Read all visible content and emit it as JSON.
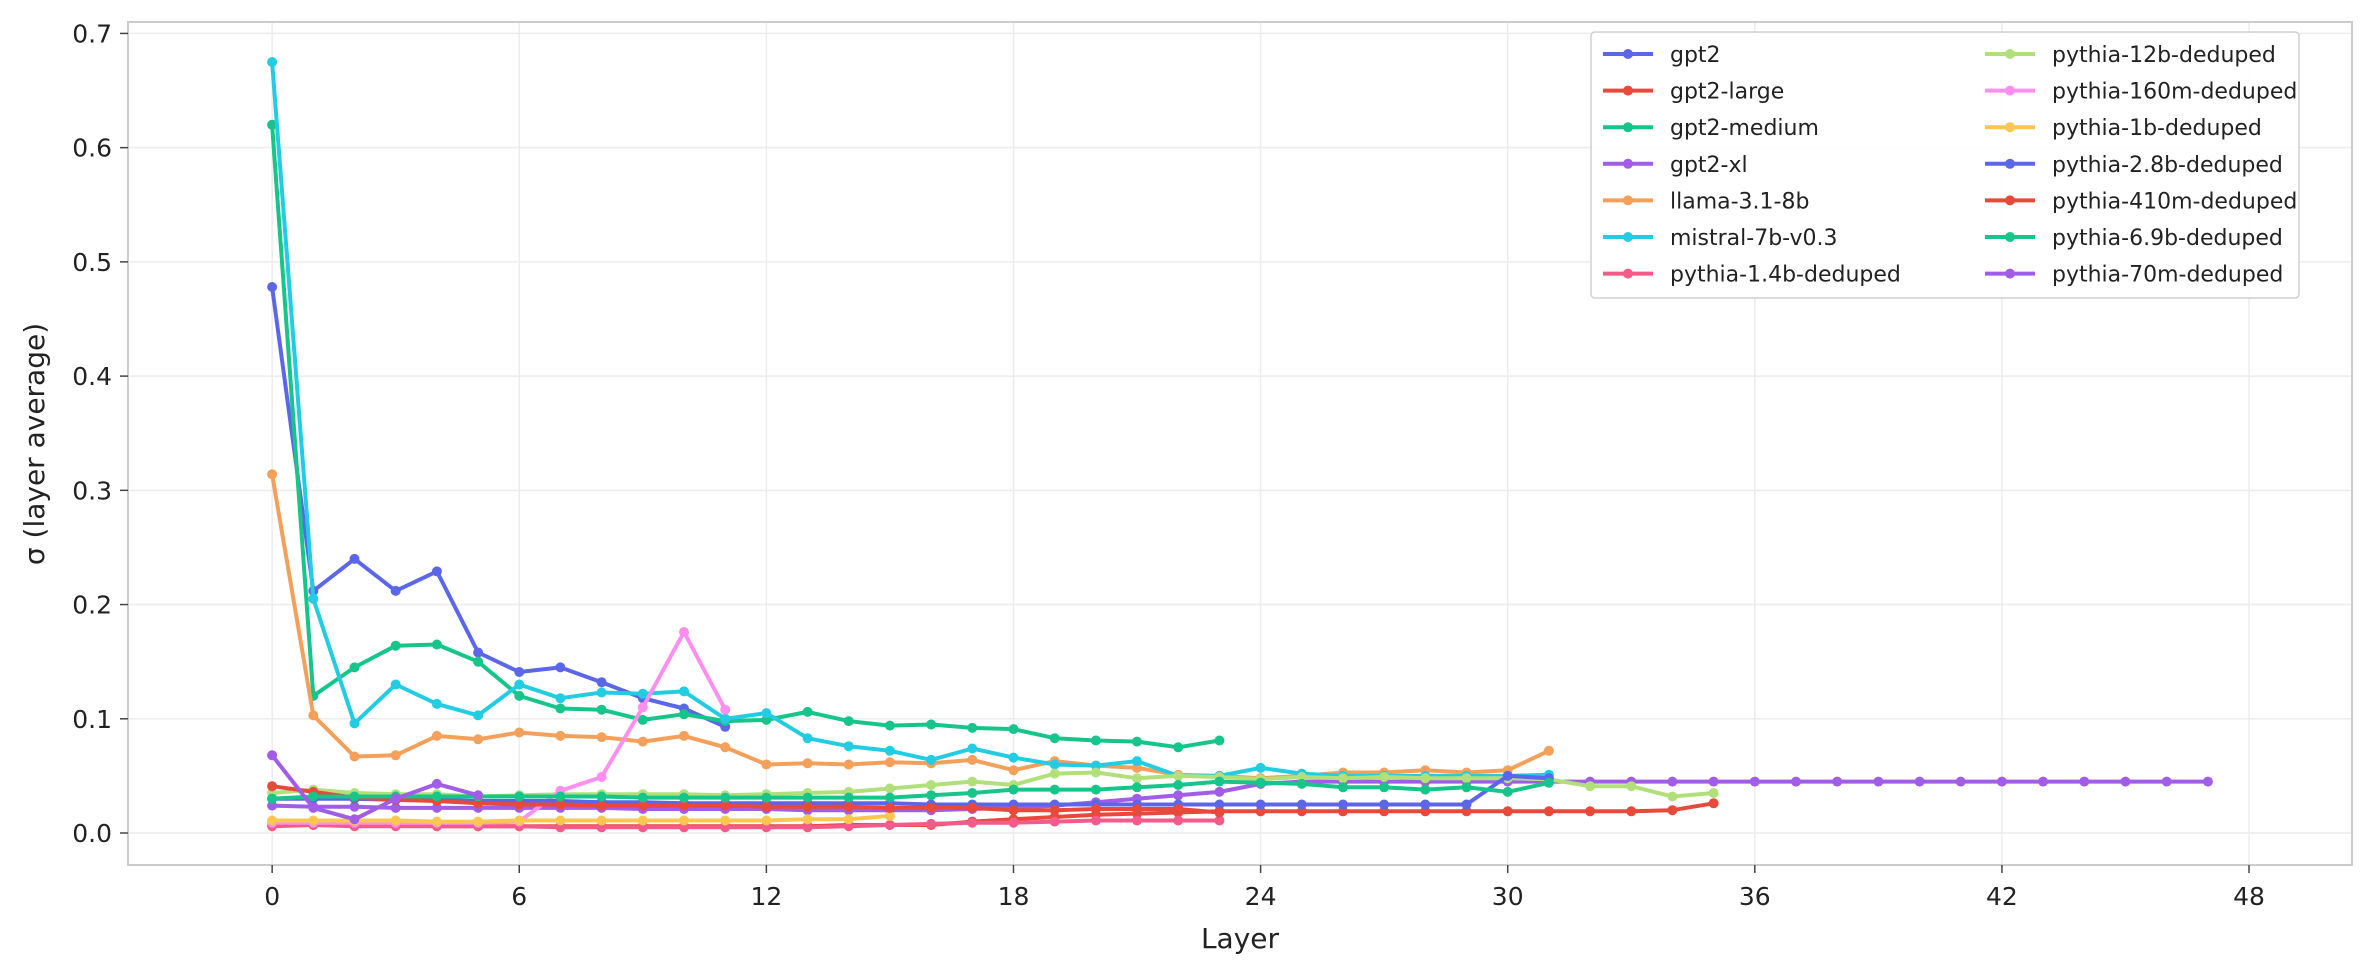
{
  "chart_data": {
    "type": "line",
    "xlabel": "Layer",
    "ylabel": "σ (layer average)",
    "xlim": [
      -3.5,
      50.5
    ],
    "ylim": [
      -0.028,
      0.71
    ],
    "xticks": [
      0,
      6,
      12,
      18,
      24,
      30,
      36,
      42,
      48
    ],
    "yticks": [
      0.0,
      0.1,
      0.2,
      0.3,
      0.4,
      0.5,
      0.6,
      0.7
    ],
    "xtick_labels": [
      "0",
      "6",
      "12",
      "18",
      "24",
      "30",
      "36",
      "42",
      "48"
    ],
    "ytick_labels": [
      "0.0",
      "0.1",
      "0.2",
      "0.3",
      "0.4",
      "0.5",
      "0.6",
      "0.7"
    ],
    "grid": true,
    "legend_position": "top-right",
    "legend_columns": 2,
    "series": [
      {
        "name": "gpt2",
        "color": "#5b67e8",
        "values": [
          0.478,
          0.212,
          0.24,
          0.212,
          0.229,
          0.158,
          0.141,
          0.145,
          0.132,
          0.118,
          0.109,
          0.093
        ]
      },
      {
        "name": "gpt2-large",
        "color": "#e8493a",
        "values": [
          0.007,
          0.007,
          0.007,
          0.007,
          0.006,
          0.006,
          0.006,
          0.006,
          0.006,
          0.006,
          0.006,
          0.006,
          0.006,
          0.006,
          0.007,
          0.007,
          0.007,
          0.01,
          0.012,
          0.014,
          0.016,
          0.017,
          0.018,
          0.019,
          0.019,
          0.019,
          0.019,
          0.019,
          0.019,
          0.019,
          0.019,
          0.019,
          0.019,
          0.019,
          0.02,
          0.026
        ]
      },
      {
        "name": "gpt2-medium",
        "color": "#16c58a",
        "values": [
          0.62,
          0.12,
          0.145,
          0.164,
          0.165,
          0.15,
          0.12,
          0.109,
          0.108,
          0.099,
          0.104,
          0.098,
          0.099,
          0.106,
          0.098,
          0.094,
          0.095,
          0.092,
          0.091,
          0.083,
          0.081,
          0.08,
          0.075,
          0.081
        ]
      },
      {
        "name": "gpt2-xl",
        "color": "#a15ce8",
        "values": [
          0.024,
          0.023,
          0.023,
          0.022,
          0.022,
          0.022,
          0.022,
          0.022,
          0.022,
          0.021,
          0.021,
          0.021,
          0.021,
          0.02,
          0.02,
          0.02,
          0.02,
          0.021,
          0.022,
          0.024,
          0.027,
          0.03,
          0.033,
          0.036,
          0.043,
          0.045,
          0.045,
          0.045,
          0.045,
          0.045,
          0.045,
          0.045,
          0.045,
          0.045,
          0.045,
          0.045,
          0.045,
          0.045,
          0.045,
          0.045,
          0.045,
          0.045,
          0.045,
          0.045,
          0.045,
          0.045,
          0.045,
          0.045
        ]
      },
      {
        "name": "llama-3.1-8b",
        "color": "#f5a05a",
        "values": [
          0.314,
          0.103,
          0.067,
          0.068,
          0.085,
          0.082,
          0.088,
          0.085,
          0.084,
          0.08,
          0.085,
          0.075,
          0.06,
          0.061,
          0.06,
          0.062,
          0.061,
          0.064,
          0.055,
          0.063,
          0.059,
          0.057,
          0.051,
          0.05,
          0.048,
          0.05,
          0.053,
          0.053,
          0.055,
          0.053,
          0.055,
          0.072
        ]
      },
      {
        "name": "mistral-7b-v0.3",
        "color": "#22cde3",
        "values": [
          0.675,
          0.205,
          0.096,
          0.13,
          0.113,
          0.103,
          0.13,
          0.118,
          0.123,
          0.122,
          0.124,
          0.1,
          0.105,
          0.083,
          0.076,
          0.072,
          0.064,
          0.074,
          0.066,
          0.06,
          0.059,
          0.063,
          0.05,
          0.05,
          0.057,
          0.052,
          0.05,
          0.05,
          0.05,
          0.05,
          0.05,
          0.051
        ]
      },
      {
        "name": "pythia-1.4b-deduped",
        "color": "#f45b8a",
        "values": [
          0.006,
          0.007,
          0.006,
          0.006,
          0.006,
          0.006,
          0.006,
          0.005,
          0.005,
          0.005,
          0.005,
          0.005,
          0.005,
          0.005,
          0.006,
          0.007,
          0.008,
          0.009,
          0.009,
          0.01,
          0.011,
          0.011,
          0.011,
          0.011
        ]
      },
      {
        "name": "pythia-12b-deduped",
        "color": "#b1e07b",
        "values": [
          0.035,
          0.038,
          0.035,
          0.034,
          0.034,
          0.032,
          0.033,
          0.034,
          0.034,
          0.034,
          0.034,
          0.033,
          0.034,
          0.035,
          0.036,
          0.039,
          0.042,
          0.045,
          0.042,
          0.052,
          0.053,
          0.048,
          0.05,
          0.049,
          0.047,
          0.049,
          0.048,
          0.049,
          0.048,
          0.048,
          0.048,
          0.047,
          0.041,
          0.041,
          0.032,
          0.035
        ]
      },
      {
        "name": "pythia-160m-deduped",
        "color": "#fe8ff0",
        "values": [
          0.009,
          0.009,
          0.009,
          0.009,
          0.009,
          0.009,
          0.01,
          0.037,
          0.049,
          0.11,
          0.176,
          0.108
        ]
      },
      {
        "name": "pythia-1b-deduped",
        "color": "#f9c74f",
        "values": [
          0.011,
          0.011,
          0.011,
          0.011,
          0.01,
          0.01,
          0.011,
          0.011,
          0.011,
          0.011,
          0.011,
          0.011,
          0.011,
          0.012,
          0.012,
          0.015
        ]
      },
      {
        "name": "pythia-2.8b-deduped",
        "color": "#5b67e8",
        "values": [
          0.03,
          0.03,
          0.03,
          0.029,
          0.029,
          0.028,
          0.028,
          0.028,
          0.027,
          0.027,
          0.026,
          0.026,
          0.026,
          0.026,
          0.026,
          0.026,
          0.025,
          0.025,
          0.025,
          0.025,
          0.025,
          0.025,
          0.025,
          0.025,
          0.025,
          0.025,
          0.025,
          0.025,
          0.025,
          0.025,
          0.05,
          0.048
        ]
      },
      {
        "name": "pythia-410m-deduped",
        "color": "#e8493a",
        "values": [
          0.041,
          0.036,
          0.031,
          0.029,
          0.028,
          0.026,
          0.025,
          0.025,
          0.024,
          0.024,
          0.024,
          0.024,
          0.023,
          0.023,
          0.023,
          0.022,
          0.022,
          0.022,
          0.02,
          0.02,
          0.021,
          0.021,
          0.021,
          0.018
        ]
      },
      {
        "name": "pythia-6.9b-deduped",
        "color": "#16c58a",
        "values": [
          0.03,
          0.032,
          0.032,
          0.032,
          0.032,
          0.032,
          0.032,
          0.032,
          0.032,
          0.031,
          0.031,
          0.031,
          0.031,
          0.031,
          0.031,
          0.031,
          0.033,
          0.035,
          0.038,
          0.038,
          0.038,
          0.04,
          0.042,
          0.045,
          0.044,
          0.043,
          0.04,
          0.04,
          0.038,
          0.04,
          0.036,
          0.044
        ]
      },
      {
        "name": "pythia-70m-deduped",
        "color": "#a15ce8",
        "values": [
          0.068,
          0.022,
          0.012,
          0.03,
          0.043,
          0.033
        ]
      }
    ]
  }
}
